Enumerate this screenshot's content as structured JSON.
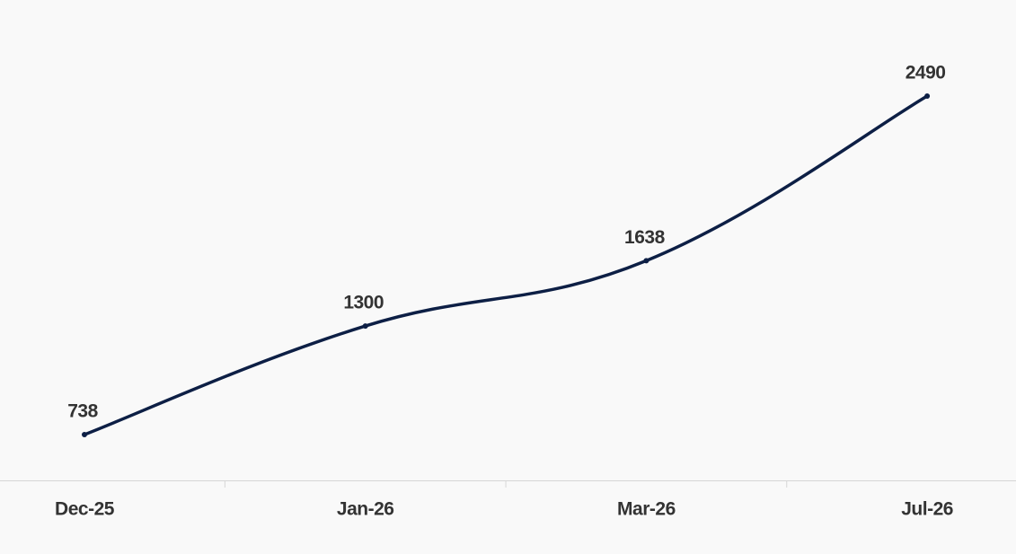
{
  "chart_data": {
    "type": "line",
    "categories": [
      "Dec-25",
      "Jan-26",
      "Mar-26",
      "Jul-26"
    ],
    "series": [
      {
        "name": null,
        "color": "#0d1f45",
        "values": [
          738,
          1300,
          1638,
          2490
        ]
      }
    ]
  }
}
